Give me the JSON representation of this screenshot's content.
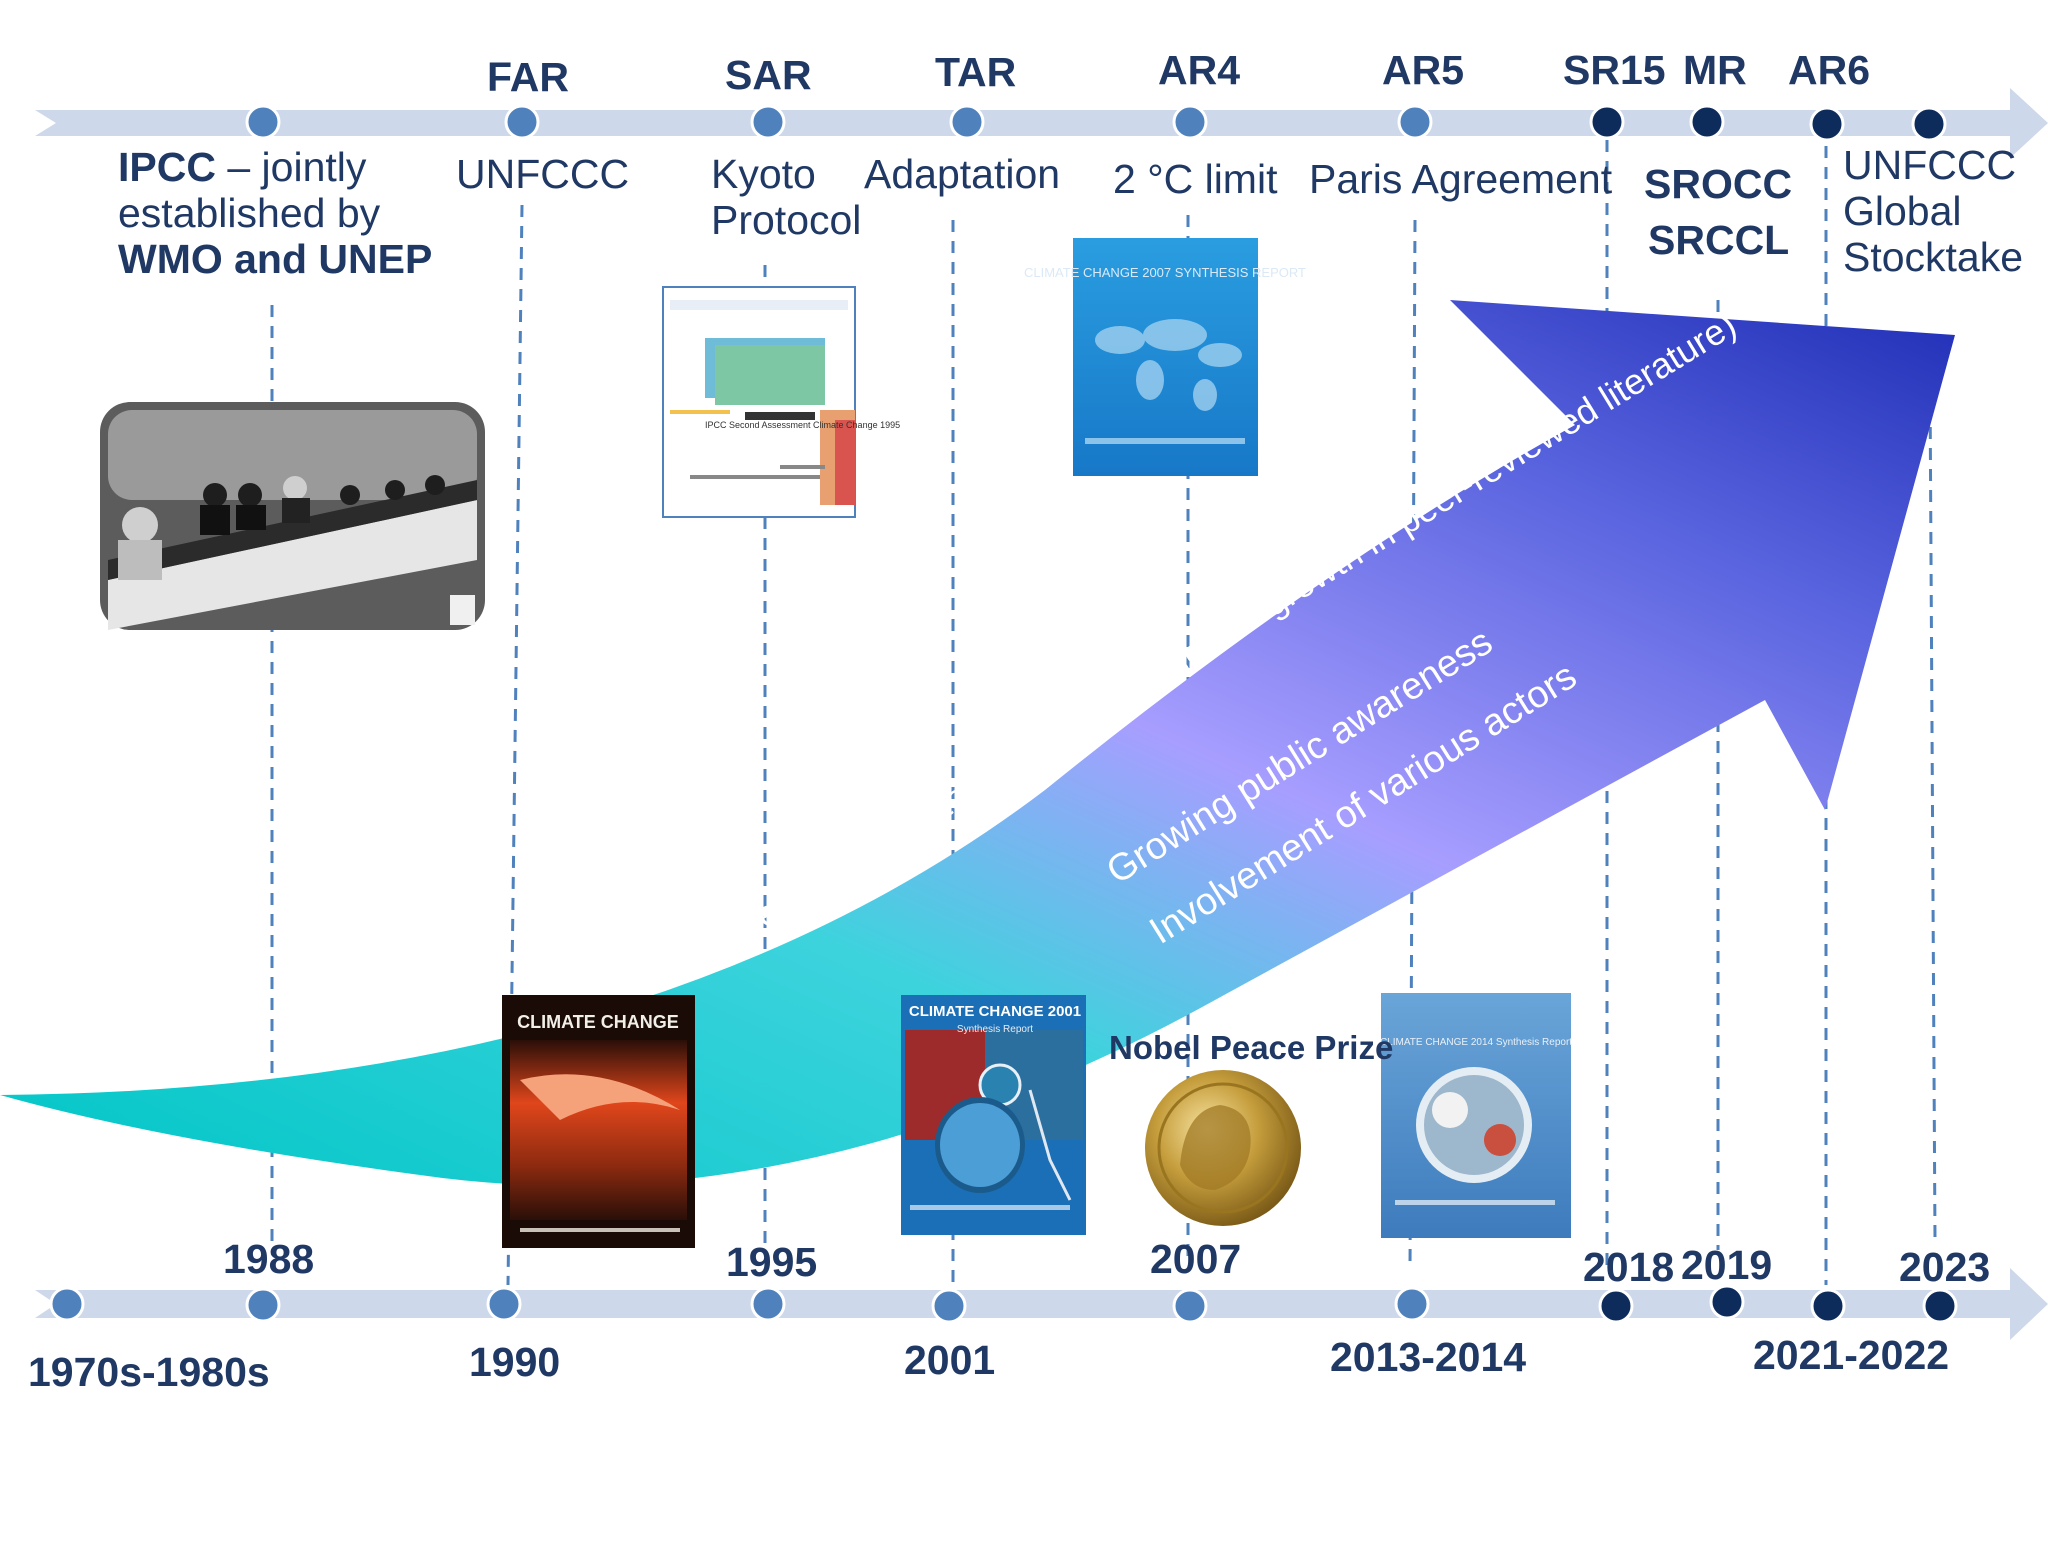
{
  "reports": [
    "FAR",
    "SAR",
    "TAR",
    "AR4",
    "AR5",
    "SR15",
    "MR",
    "AR6"
  ],
  "years_top_row": [
    "1988",
    "1995",
    "2007",
    "2018",
    "2019",
    "2023"
  ],
  "years_bottom_row": [
    "1970s-1980s",
    "1990",
    "2001",
    "2013-2014",
    "2021-2022"
  ],
  "events": {
    "ipcc_bold": "IPCC",
    "ipcc_rest": " –  jointly",
    "ipcc_line2": "established by",
    "ipcc_line3": "WMO and UNEP",
    "unfccc": "UNFCCC",
    "kyoto_line1": "Kyoto",
    "kyoto_line2": "Protocol",
    "adaptation": "Adaptation",
    "two_degree": "2 °C limit",
    "paris": "Paris Agreement",
    "srocc": "SROCC",
    "srccl": "SRCCL",
    "stocktake_line1": "UNFCCC",
    "stocktake_line2": "Global",
    "stocktake_line3": "Stocktake",
    "nobel": "Nobel Peace Prize"
  },
  "arrow_text": {
    "line1": "Science of climate change ( exponential growth in peer-reviewed literature)",
    "line2": "Growing public awareness",
    "line3": "Involvement of various actors"
  },
  "covers": {
    "sar": "IPCC Second Assessment Climate Change 1995",
    "ar4": "CLIMATE CHANGE 2007 SYNTHESIS REPORT",
    "far": "CLIMATE CHANGE",
    "tar_title": "CLIMATE CHANGE 2001",
    "tar_sub": "Synthesis Report",
    "ar5": "CLIMATE CHANGE 2014 Synthesis Report"
  },
  "colors": {
    "timeline": "#cdd8ea",
    "dot_light": "#4f81bd",
    "dot_dark": "#0d2c5c",
    "text": "#1f3864",
    "arrow_start": "#00c9c8",
    "arrow_mid": "#a9a2ff",
    "arrow_end": "#1f2fbb"
  }
}
